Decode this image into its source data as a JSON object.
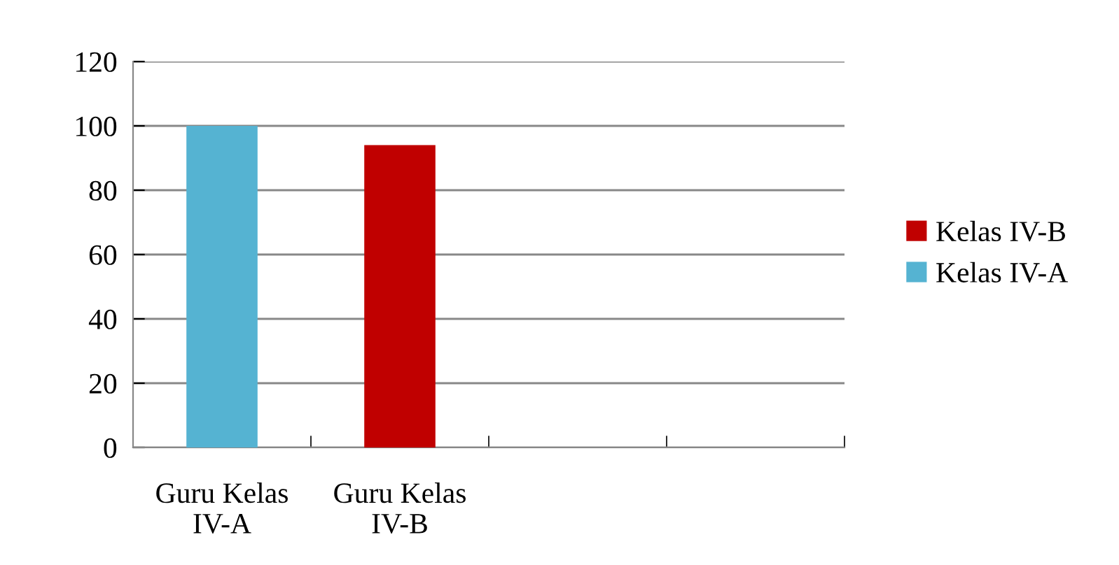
{
  "chart_data": {
    "type": "bar",
    "stacked": true,
    "categories": [
      "Guru Kelas\nIV-A",
      "Guru Kelas\nIV-B",
      null,
      null
    ],
    "series": [
      {
        "name": "Kelas IV-A",
        "color": "#55b3d2",
        "values": [
          100,
          null,
          null,
          null
        ]
      },
      {
        "name": "Kelas IV-B",
        "color": "#c00000",
        "values": [
          null,
          94,
          null,
          null
        ]
      }
    ],
    "ylim": [
      0,
      120
    ],
    "yticks": [
      0,
      20,
      40,
      60,
      80,
      100,
      120
    ],
    "grid": "y",
    "legend": "right"
  }
}
